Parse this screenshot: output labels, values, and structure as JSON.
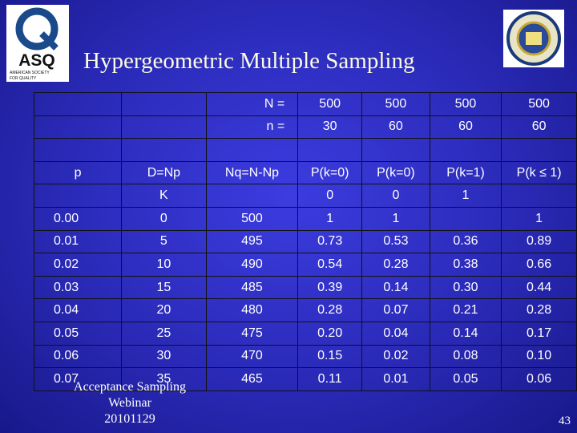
{
  "header": {
    "title": "Hypergeometric Multiple Sampling",
    "logo_text": "ASQ",
    "logo_caption": [
      "AMERICAN SOCIETY",
      "FOR QUALITY"
    ]
  },
  "table": {
    "rows": [
      [
        null,
        null,
        "N =",
        "500",
        "500",
        "500",
        "500"
      ],
      [
        null,
        null,
        "n =",
        "30",
        "60",
        "60",
        "60"
      ],
      [
        null,
        null,
        null,
        null,
        null,
        null,
        null
      ],
      [
        "p",
        "D=Np",
        "Nq=N-Np",
        "P(k=0)",
        "P(k=0)",
        "P(k=1)",
        "P(k ≤ 1)"
      ],
      [
        null,
        "K",
        null,
        "0",
        "0",
        "1",
        null
      ],
      [
        "0.00",
        "0",
        "500",
        "1",
        "1",
        null,
        "1"
      ],
      [
        "0.01",
        "5",
        "495",
        "0.73",
        "0.53",
        "0.36",
        "0.89"
      ],
      [
        "0.02",
        "10",
        "490",
        "0.54",
        "0.28",
        "0.38",
        "0.66"
      ],
      [
        "0.03",
        "15",
        "485",
        "0.39",
        "0.14",
        "0.30",
        "0.44"
      ],
      [
        "0.04",
        "20",
        "480",
        "0.28",
        "0.07",
        "0.21",
        "0.28"
      ],
      [
        "0.05",
        "25",
        "475",
        "0.20",
        "0.04",
        "0.14",
        "0.17"
      ],
      [
        "0.06",
        "30",
        "470",
        "0.15",
        "0.02",
        "0.08",
        "0.10"
      ],
      [
        "0.07",
        "35",
        "465",
        "0.11",
        "0.01",
        "0.05",
        "0.06"
      ]
    ]
  },
  "footer": {
    "lines": [
      "Acceptance Sampling",
      "Webinar",
      "20101129"
    ],
    "page_number": "43"
  }
}
